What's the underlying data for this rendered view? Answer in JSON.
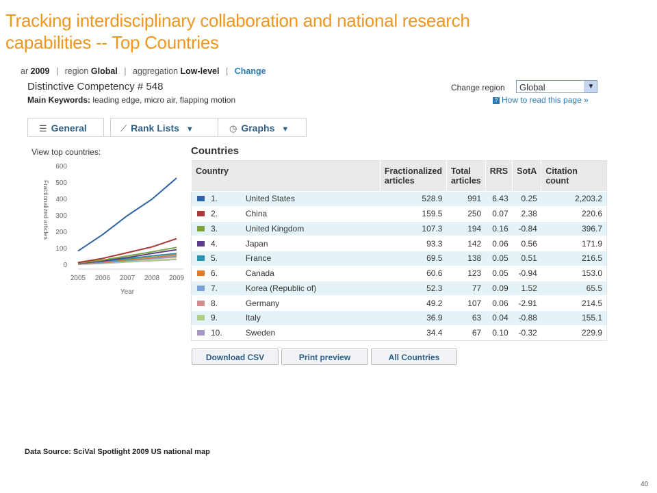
{
  "slide": {
    "title_line1": "Tracking interdisciplinary collaboration and national research",
    "title_line2": "capabilities  -- Top Countries",
    "source": "Data Source: SciVal Spotlight 2009 US national map",
    "page_number": "40"
  },
  "breadcrumb": {
    "year_prefix": "ar",
    "year": "2009",
    "region_prefix": "region",
    "region": "Global",
    "aggregation_prefix": "aggregation",
    "aggregation": "Low-level",
    "change_link": "Change"
  },
  "competency": {
    "title": "Distinctive Competency # 548",
    "keywords_label": "Main Keywords:",
    "keywords": "leading edge, micro air, flapping motion"
  },
  "region_selector": {
    "label": "Change region",
    "value": "Global",
    "help_link": "How to read this page »"
  },
  "tabs": [
    {
      "label": "General",
      "icon": "list-icon"
    },
    {
      "label": "Rank Lists",
      "icon": "line-chart-icon"
    },
    {
      "label": "Graphs",
      "icon": "clock-icon"
    }
  ],
  "view_top_label": "View top countries:",
  "chart_data": {
    "type": "line",
    "title": "",
    "xlabel": "Year",
    "ylabel": "Fractionalized articles",
    "x": [
      "2005",
      "2006",
      "2007",
      "2008",
      "2009"
    ],
    "ylim": [
      0,
      600
    ],
    "yticks": [
      "0",
      "100",
      "200",
      "300",
      "400",
      "500",
      "600"
    ],
    "grid": false,
    "series": [
      {
        "color": "#2e62a4",
        "values": [
          85,
          185,
          300,
          400,
          529
        ]
      },
      {
        "color": "#a83b38",
        "values": [
          15,
          40,
          75,
          110,
          160
        ]
      },
      {
        "color": "#7ea33a",
        "values": [
          12,
          30,
          55,
          80,
          107
        ]
      },
      {
        "color": "#5b3d8a",
        "values": [
          10,
          25,
          45,
          70,
          93
        ]
      },
      {
        "color": "#2b93b0",
        "values": [
          10,
          22,
          38,
          55,
          70
        ]
      },
      {
        "color": "#e07b2a",
        "values": [
          8,
          18,
          32,
          46,
          61
        ]
      },
      {
        "color": "#7ba0d4",
        "values": [
          6,
          14,
          26,
          40,
          52
        ]
      },
      {
        "color": "#d18c8c",
        "values": [
          7,
          15,
          26,
          38,
          49
        ]
      },
      {
        "color": "#b0cf86",
        "values": [
          5,
          11,
          19,
          28,
          37
        ]
      },
      {
        "color": "#a697c4",
        "values": [
          4,
          10,
          18,
          26,
          34
        ]
      }
    ]
  },
  "table": {
    "heading": "Countries",
    "columns": [
      "Country",
      "Fractionalized articles",
      "Total articles",
      "RRS",
      "SotA",
      "Citation count"
    ],
    "rows": [
      {
        "rank": "1.",
        "name": "United States",
        "frac": "528.9",
        "total": "991",
        "rrs": "6.43",
        "sota": "0.25",
        "cit": "2,203.2",
        "color": "#2e62a4"
      },
      {
        "rank": "2.",
        "name": "China",
        "frac": "159.5",
        "total": "250",
        "rrs": "0.07",
        "sota": "2.38",
        "cit": "220.6",
        "color": "#a83b38"
      },
      {
        "rank": "3.",
        "name": "United Kingdom",
        "frac": "107.3",
        "total": "194",
        "rrs": "0.16",
        "sota": "-0.84",
        "cit": "396.7",
        "color": "#7ea33a"
      },
      {
        "rank": "4.",
        "name": "Japan",
        "frac": "93.3",
        "total": "142",
        "rrs": "0.06",
        "sota": "0.56",
        "cit": "171.9",
        "color": "#5b3d8a"
      },
      {
        "rank": "5.",
        "name": "France",
        "frac": "69.5",
        "total": "138",
        "rrs": "0.05",
        "sota": "0.51",
        "cit": "216.5",
        "color": "#2b93b0"
      },
      {
        "rank": "6.",
        "name": "Canada",
        "frac": "60.6",
        "total": "123",
        "rrs": "0.05",
        "sota": "-0.94",
        "cit": "153.0",
        "color": "#e07b2a"
      },
      {
        "rank": "7.",
        "name": "Korea (Republic of)",
        "frac": "52.3",
        "total": "77",
        "rrs": "0.09",
        "sota": "1.52",
        "cit": "65.5",
        "color": "#7ba0d4"
      },
      {
        "rank": "8.",
        "name": "Germany",
        "frac": "49.2",
        "total": "107",
        "rrs": "0.06",
        "sota": "-2.91",
        "cit": "214.5",
        "color": "#d18c8c"
      },
      {
        "rank": "9.",
        "name": "Italy",
        "frac": "36.9",
        "total": "63",
        "rrs": "0.04",
        "sota": "-0.88",
        "cit": "155.1",
        "color": "#b0cf86"
      },
      {
        "rank": "10.",
        "name": "Sweden",
        "frac": "34.4",
        "total": "67",
        "rrs": "0.10",
        "sota": "-0.32",
        "cit": "229.9",
        "color": "#a697c4"
      }
    ]
  },
  "buttons": {
    "download": "Download CSV",
    "print": "Print preview",
    "all": "All Countries"
  }
}
